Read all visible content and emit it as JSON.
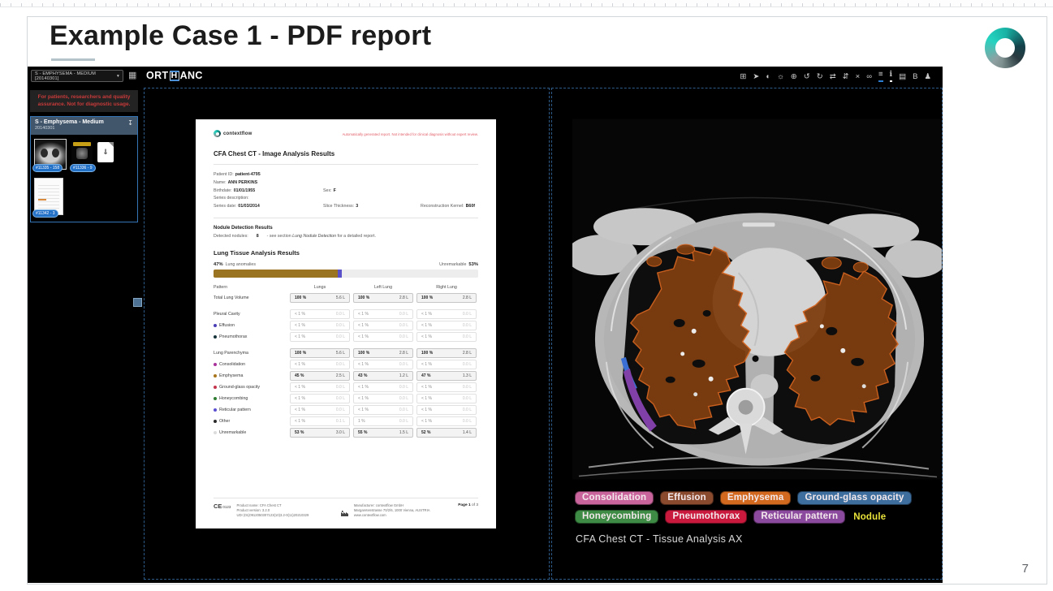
{
  "slide": {
    "title": "Example Case 1 - PDF report",
    "page_number": "7"
  },
  "viewer": {
    "study_selector": "S - EMPHYSEMA - MEDIUM [20140301]",
    "study_selector_caret": "▾",
    "grid_icon_glyph": "▦",
    "logo": {
      "pre": "ORT",
      "h": "H",
      "post": "ANC"
    },
    "toolbar": [
      {
        "name": "layout-grid-icon",
        "glyph": "⊞"
      },
      {
        "name": "cursor-icon",
        "glyph": "➤"
      },
      {
        "name": "contrast-icon",
        "glyph": "◐"
      },
      {
        "name": "brightness-icon",
        "glyph": "☼"
      },
      {
        "name": "zoom-icon",
        "glyph": "⊕"
      },
      {
        "name": "undo-icon",
        "glyph": "↺"
      },
      {
        "name": "redo-icon",
        "glyph": "↻"
      },
      {
        "name": "swap-icon",
        "glyph": "⇄"
      },
      {
        "name": "scroll-stack-icon",
        "glyph": "⇵"
      },
      {
        "name": "close-icon",
        "glyph": "×"
      },
      {
        "name": "link-icon",
        "glyph": "∞"
      },
      {
        "name": "series-list-icon",
        "glyph": "≡",
        "underline": "#2d7dd2"
      },
      {
        "name": "info-icon",
        "glyph": "ℹ",
        "underline": "#ffffff"
      },
      {
        "name": "print-icon",
        "glyph": "▤"
      },
      {
        "name": "bold-annotation-icon",
        "glyph": "B"
      },
      {
        "name": "user-icon",
        "glyph": "♟"
      }
    ],
    "sidebar": {
      "warning": "For patients, researchers and quality assurance. Not for diagnostic usage.",
      "series_title": "S - Emphysema - Medium",
      "series_date": "20140301",
      "download_icon_glyph": "↧",
      "thumbnails": [
        {
          "badge": "#11335 - 158"
        },
        {
          "badge": "#11336 - 9"
        },
        {
          "badge": "#11342 - 3"
        }
      ]
    }
  },
  "report": {
    "brand": "contextflow",
    "disclaimer": "Automatically generated report. Not intended for clinical diagnosis without expert review.",
    "title": "CFA Chest CT - Image Analysis Results",
    "patient": {
      "id_label": "Patient ID:",
      "id": "patient-4795",
      "name_label": "Name:",
      "name": "ANN PERKINS",
      "birthdate_label": "Birthdate:",
      "birthdate": "01/01/1955",
      "sex_label": "Sex:",
      "sex": "F",
      "series_desc_label": "Series description:",
      "series_date_label": "Series date:",
      "series_date": "01/03/2014",
      "slice_label": "Slice Thickness:",
      "slice": "3",
      "kernel_label": "Reconstruction Kernel:",
      "kernel": "B60f"
    },
    "nodule": {
      "heading": "Nodule Detection Results",
      "prefix": "Detected nodules:",
      "count": "8",
      "mid": "- see section ",
      "italic": "Lung Nodule Detection",
      "suffix": " for a detailed report."
    },
    "tissue": {
      "heading": "Lung Tissue Analysis Results",
      "anomalies_pct": "47%",
      "anomalies_label": "Lung anomalies",
      "unremarkable_label": "Unremarkable",
      "unremarkable_pct": "53%",
      "bar_segments": [
        {
          "width": "47%",
          "color": "#9a7420"
        },
        {
          "width": "1.6%",
          "color": "#5a50c8"
        },
        {
          "width": "51.4%",
          "color": "#ededed"
        }
      ]
    },
    "table": {
      "headers": [
        "Pattern",
        "Lungs",
        "Left Lung",
        "Right Lung"
      ],
      "rows": [
        {
          "label": "Total Lung Volume",
          "style": "emph",
          "cells": [
            [
              "100 %",
              "5.6 L"
            ],
            [
              "100 %",
              "2.8 L"
            ],
            [
              "100 %",
              "2.8 L"
            ]
          ]
        },
        {
          "label": "Pleural Cavity",
          "style": "muted",
          "gap": true,
          "cells": [
            [
              "< 1 %",
              "0.0 L"
            ],
            [
              "< 1 %",
              "0.0 L"
            ],
            [
              "< 1 %",
              "0.0 L"
            ]
          ]
        },
        {
          "label": "Effusion",
          "dot": "#4a3fb5",
          "style": "muted",
          "cells": [
            [
              "< 1 %",
              "0.0 L"
            ],
            [
              "< 1 %",
              "0.0 L"
            ],
            [
              "< 1 %",
              "0.0 L"
            ]
          ]
        },
        {
          "label": "Pneumothorax",
          "dot": "#16343a",
          "style": "muted",
          "cells": [
            [
              "< 1 %",
              "0.0 L"
            ],
            [
              "< 1 %",
              "0.0 L"
            ],
            [
              "< 1 %",
              "0.0 L"
            ]
          ]
        },
        {
          "label": "Lung Parenchyma",
          "style": "emph",
          "gap": true,
          "cells": [
            [
              "100 %",
              "5.6 L"
            ],
            [
              "100 %",
              "2.8 L"
            ],
            [
              "100 %",
              "2.8 L"
            ]
          ]
        },
        {
          "label": "Consolidation",
          "dot": "#a8329b",
          "style": "muted",
          "cells": [
            [
              "< 1 %",
              "0.0 L"
            ],
            [
              "< 1 %",
              "0.0 L"
            ],
            [
              "< 1 %",
              "0.0 L"
            ]
          ]
        },
        {
          "label": "Emphysema",
          "dot": "#a8741c",
          "style": "emph",
          "cells": [
            [
              "45 %",
              "2.5 L"
            ],
            [
              "43 %",
              "1.2 L"
            ],
            [
              "47 %",
              "1.3 L"
            ]
          ]
        },
        {
          "label": "Ground-glass opacity",
          "dot": "#c4344c",
          "style": "muted",
          "cells": [
            [
              "< 1 %",
              "0.0 L"
            ],
            [
              "< 1 %",
              "0.0 L"
            ],
            [
              "< 1 %",
              "0.0 L"
            ]
          ]
        },
        {
          "label": "Honeycombing",
          "dot": "#2f7d33",
          "style": "muted",
          "cells": [
            [
              "< 1 %",
              "0.0 L"
            ],
            [
              "< 1 %",
              "0.0 L"
            ],
            [
              "< 1 %",
              "0.0 L"
            ]
          ]
        },
        {
          "label": "Reticular pattern",
          "dot": "#5a4fd0",
          "style": "muted",
          "cells": [
            [
              "< 1 %",
              "0.0 L"
            ],
            [
              "< 1 %",
              "0.0 L"
            ],
            [
              "< 1 %",
              "0.0 L"
            ]
          ]
        },
        {
          "label": "Other",
          "dot": "#2b2b2b",
          "style": "muted",
          "cells": [
            [
              "< 1 %",
              "0.1 L"
            ],
            [
              "1 %",
              "0.0 L"
            ],
            [
              "< 1 %",
              "0.0 L"
            ]
          ]
        },
        {
          "label": "Unremarkable",
          "dot": "#dcdcdc",
          "style": "emph",
          "cells": [
            [
              "53 %",
              "3.0 L"
            ],
            [
              "55 %",
              "1.5 L"
            ],
            [
              "52 %",
              "1.4 L"
            ]
          ]
        }
      ]
    },
    "footer": {
      "ce": "CE",
      "ce_num": "0123",
      "product_name": "Product name: CFA Chest CT",
      "product_version": "Product version: 3.2.0",
      "udi": "UDI (01)0912050307123(10)3.2-0(11)20210329",
      "manufacturer": "Manufacturer: contextflow GmbH",
      "address": "Margaretenstrasse 70/2/6, 1000 Vienna, AUSTRIA",
      "website": "www.contextflow.com",
      "page_label": "Page 1",
      "page_suffix": " of 3"
    }
  },
  "overlay": {
    "legend": [
      {
        "row": 1,
        "label": "Consolidation",
        "bg": "#c9659c"
      },
      {
        "row": 1,
        "label": "Effusion",
        "bg": "#8a4a2e"
      },
      {
        "row": 1,
        "label": "Emphysema",
        "bg": "#d2691e"
      },
      {
        "row": 1,
        "label": "Ground-glass opacity",
        "bg": "#3d6e9e"
      },
      {
        "row": 2,
        "label": "Honeycombing",
        "bg": "#3d8b44"
      },
      {
        "row": 2,
        "label": "Pneumothorax",
        "bg": "#c9193c"
      },
      {
        "row": 2,
        "label": "Reticular pattern",
        "bg": "#8c4a9e"
      },
      {
        "row": 2,
        "label": "Nodule",
        "bg": "",
        "text_color": "#e8e23a"
      }
    ],
    "caption": "CFA Chest CT - Tissue Analysis AX"
  }
}
